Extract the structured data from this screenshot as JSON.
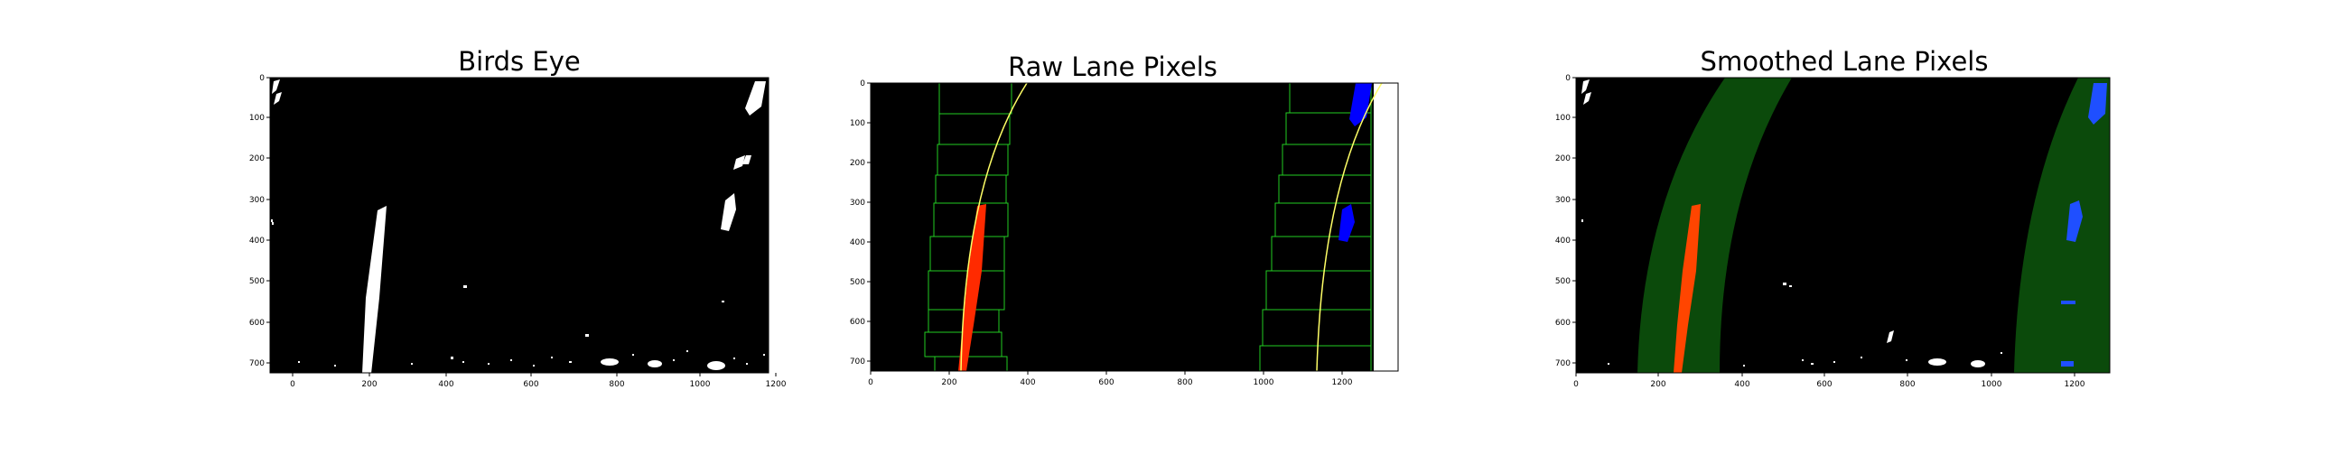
{
  "figure": {
    "background": "#ffffff",
    "panels": [
      {
        "id": "birds-eye",
        "title": "Birds Eye",
        "xticks": [
          "0",
          "200",
          "400",
          "600",
          "800",
          "1000",
          "1200"
        ],
        "yticks": [
          "0",
          "100",
          "200",
          "300",
          "400",
          "500",
          "600",
          "700"
        ],
        "xlim": [
          0,
          1280
        ],
        "ylim": [
          720,
          0
        ],
        "image": "binary lane mask: white lane pixels on black"
      },
      {
        "id": "raw-lane-pixels",
        "title": "Raw Lane Pixels",
        "xticks": [
          "0",
          "200",
          "400",
          "600",
          "800",
          "1000",
          "1200"
        ],
        "yticks": [
          "0",
          "100",
          "200",
          "300",
          "400",
          "500",
          "600",
          "700"
        ],
        "xlim": [
          0,
          1350
        ],
        "ylim": [
          720,
          0
        ],
        "image": "sliding-window search with fitted polynomials"
      },
      {
        "id": "smoothed-lane-pixels",
        "title": "Smoothed Lane Pixels",
        "xticks": [
          "0",
          "200",
          "400",
          "600",
          "800",
          "1000",
          "1200"
        ],
        "yticks": [
          "0",
          "100",
          "200",
          "300",
          "400",
          "500",
          "600",
          "700"
        ],
        "xlim": [
          0,
          1280
        ],
        "ylim": [
          720,
          0
        ],
        "image": "lane search margins shaded green"
      }
    ],
    "colors": {
      "background": "#000000",
      "lane_pixels": "#ffffff",
      "left_lane": "#ff2a00",
      "right_lane": "#0000ff",
      "smoothed_left": "#ff4500",
      "smoothed_right": "#1f4fff",
      "window_box": "#22cc22",
      "fit_line": "#ffff66",
      "search_margin": "#0b4a0b"
    }
  }
}
